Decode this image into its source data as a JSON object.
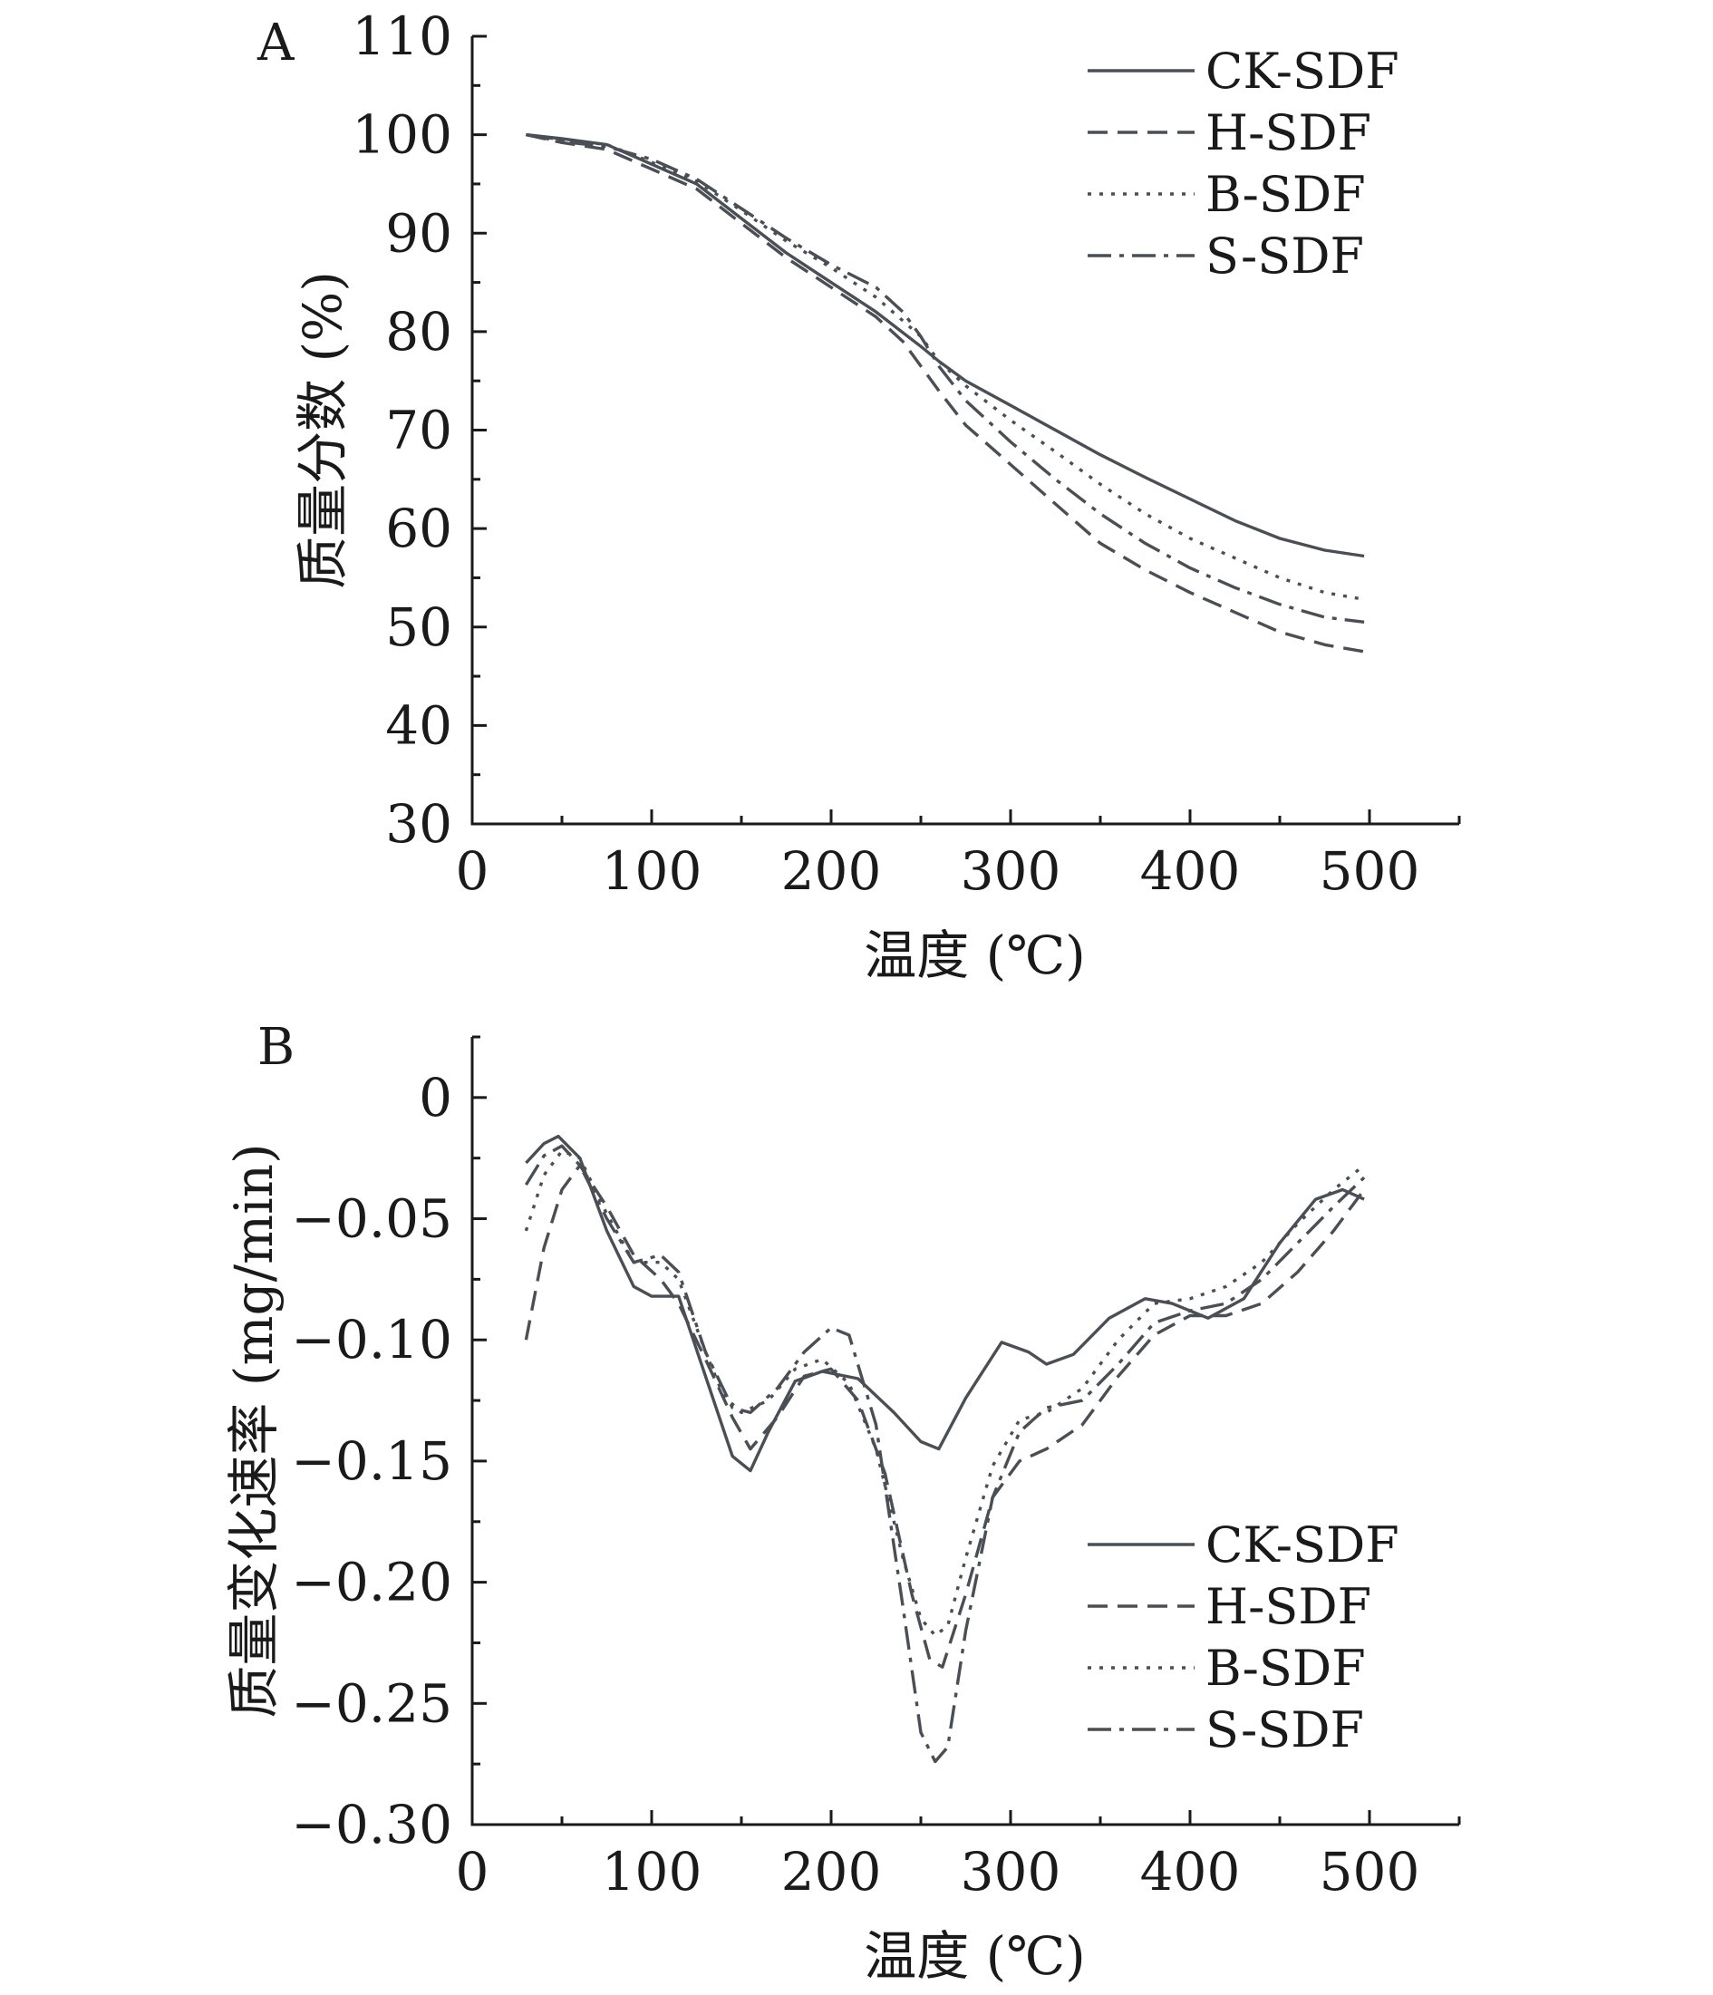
{
  "chart_data": [
    {
      "panel": "A",
      "type": "line",
      "title": "",
      "xlabel": "温度 (℃)",
      "ylabel": "质量分数 (%)",
      "xlim": [
        0,
        550
      ],
      "ylim": [
        30,
        110
      ],
      "xticks": [
        0,
        100,
        200,
        300,
        400,
        500
      ],
      "yticks": [
        30,
        40,
        50,
        60,
        70,
        80,
        90,
        100,
        110
      ],
      "legend": "top-right",
      "series": [
        {
          "name": "CK-SDF",
          "style": "solid",
          "x": [
            30,
            50,
            75,
            100,
            125,
            150,
            175,
            200,
            225,
            250,
            260,
            275,
            300,
            325,
            350,
            375,
            400,
            425,
            450,
            475,
            497
          ],
          "y": [
            100,
            99.6,
            99,
            97,
            95,
            91.5,
            88,
            85,
            82,
            78.5,
            77,
            75,
            72.5,
            70,
            67.5,
            65.2,
            63,
            60.8,
            59,
            57.8,
            57.2
          ]
        },
        {
          "name": "H-SDF",
          "style": "dashed",
          "x": [
            30,
            50,
            75,
            100,
            125,
            150,
            175,
            200,
            225,
            240,
            250,
            260,
            275,
            300,
            325,
            350,
            375,
            400,
            425,
            450,
            475,
            497
          ],
          "y": [
            100,
            99.2,
            98.5,
            96.5,
            94.5,
            91,
            87.5,
            84.5,
            81.5,
            79,
            76.5,
            74,
            70.5,
            66.5,
            62.5,
            58.5,
            55.8,
            53.5,
            51.5,
            49.5,
            48.2,
            47.5
          ]
        },
        {
          "name": "B-SDF",
          "style": "dotted",
          "x": [
            30,
            50,
            75,
            100,
            125,
            150,
            175,
            200,
            225,
            250,
            260,
            275,
            300,
            325,
            350,
            375,
            400,
            425,
            450,
            475,
            497
          ],
          "y": [
            100,
            99.5,
            99,
            97.2,
            95.3,
            92.3,
            89.2,
            86.5,
            83.5,
            79.5,
            77,
            74.5,
            71,
            67.8,
            64.5,
            61.5,
            59,
            57,
            55,
            53.5,
            52.8
          ]
        },
        {
          "name": "S-SDF",
          "style": "dashdot",
          "x": [
            30,
            50,
            75,
            100,
            125,
            150,
            175,
            200,
            225,
            240,
            250,
            260,
            275,
            300,
            325,
            350,
            375,
            400,
            425,
            450,
            475,
            497
          ],
          "y": [
            100,
            99.3,
            98.8,
            97.5,
            95.5,
            92.5,
            89.5,
            86.8,
            84.5,
            82,
            79.5,
            76.5,
            73,
            68.8,
            65,
            61.5,
            58.5,
            56,
            54,
            52.3,
            51,
            50.5
          ]
        }
      ]
    },
    {
      "panel": "B",
      "type": "line",
      "title": "",
      "xlabel": "温度 (℃)",
      "ylabel": "质量变化速率 (mg/min)",
      "xlim": [
        0,
        550
      ],
      "ylim": [
        -0.3,
        0.025
      ],
      "xticks": [
        0,
        100,
        200,
        300,
        400,
        500
      ],
      "yticks": [
        0,
        -0.05,
        -0.1,
        -0.15,
        -0.2,
        -0.25,
        -0.3
      ],
      "ytick_labels": [
        "0",
        "−0.05",
        "−0.10",
        "−0.15",
        "−0.20",
        "−0.25",
        "−0.30"
      ],
      "legend": "lower-right",
      "series": [
        {
          "name": "CK-SDF",
          "style": "solid",
          "x": [
            30,
            40,
            48,
            60,
            75,
            90,
            100,
            115,
            130,
            145,
            155,
            165,
            180,
            195,
            215,
            235,
            250,
            260,
            275,
            295,
            310,
            320,
            335,
            355,
            375,
            390,
            410,
            430,
            450,
            470,
            485,
            497
          ],
          "y": [
            -0.027,
            -0.019,
            -0.016,
            -0.025,
            -0.055,
            -0.078,
            -0.082,
            -0.082,
            -0.115,
            -0.148,
            -0.154,
            -0.138,
            -0.117,
            -0.113,
            -0.116,
            -0.13,
            -0.142,
            -0.145,
            -0.124,
            -0.101,
            -0.105,
            -0.11,
            -0.106,
            -0.091,
            -0.083,
            -0.085,
            -0.091,
            -0.083,
            -0.06,
            -0.042,
            -0.038,
            -0.042
          ]
        },
        {
          "name": "H-SDF",
          "style": "dashed",
          "x": [
            30,
            40,
            50,
            60,
            75,
            90,
            105,
            115,
            130,
            145,
            155,
            170,
            185,
            200,
            215,
            230,
            245,
            255,
            262,
            275,
            290,
            305,
            320,
            340,
            360,
            380,
            400,
            420,
            440,
            460,
            480,
            497
          ],
          "y": [
            -0.1,
            -0.062,
            -0.038,
            -0.028,
            -0.045,
            -0.065,
            -0.075,
            -0.085,
            -0.108,
            -0.132,
            -0.145,
            -0.132,
            -0.115,
            -0.112,
            -0.125,
            -0.155,
            -0.205,
            -0.232,
            -0.235,
            -0.205,
            -0.165,
            -0.15,
            -0.145,
            -0.135,
            -0.115,
            -0.098,
            -0.09,
            -0.09,
            -0.085,
            -0.072,
            -0.055,
            -0.038
          ]
        },
        {
          "name": "B-SDF",
          "style": "dotted",
          "x": [
            30,
            40,
            50,
            60,
            75,
            90,
            105,
            115,
            130,
            140,
            150,
            165,
            180,
            195,
            210,
            225,
            240,
            250,
            258,
            265,
            275,
            290,
            305,
            320,
            340,
            360,
            380,
            400,
            420,
            440,
            460,
            480,
            497
          ],
          "y": [
            -0.055,
            -0.032,
            -0.022,
            -0.025,
            -0.048,
            -0.068,
            -0.068,
            -0.075,
            -0.105,
            -0.123,
            -0.13,
            -0.125,
            -0.112,
            -0.108,
            -0.118,
            -0.145,
            -0.19,
            -0.215,
            -0.222,
            -0.218,
            -0.19,
            -0.152,
            -0.133,
            -0.13,
            -0.12,
            -0.1,
            -0.085,
            -0.083,
            -0.078,
            -0.068,
            -0.052,
            -0.038,
            -0.028
          ]
        },
        {
          "name": "S-SDF",
          "style": "dashdot",
          "x": [
            30,
            40,
            50,
            60,
            75,
            90,
            105,
            115,
            130,
            145,
            155,
            170,
            185,
            200,
            210,
            225,
            240,
            250,
            258,
            265,
            275,
            290,
            305,
            320,
            340,
            360,
            380,
            400,
            420,
            440,
            460,
            480,
            497
          ],
          "y": [
            -0.036,
            -0.024,
            -0.02,
            -0.028,
            -0.05,
            -0.068,
            -0.065,
            -0.072,
            -0.105,
            -0.128,
            -0.13,
            -0.12,
            -0.105,
            -0.095,
            -0.098,
            -0.135,
            -0.21,
            -0.262,
            -0.274,
            -0.268,
            -0.22,
            -0.165,
            -0.138,
            -0.128,
            -0.125,
            -0.11,
            -0.093,
            -0.088,
            -0.085,
            -0.075,
            -0.06,
            -0.045,
            -0.033
          ]
        }
      ]
    }
  ]
}
